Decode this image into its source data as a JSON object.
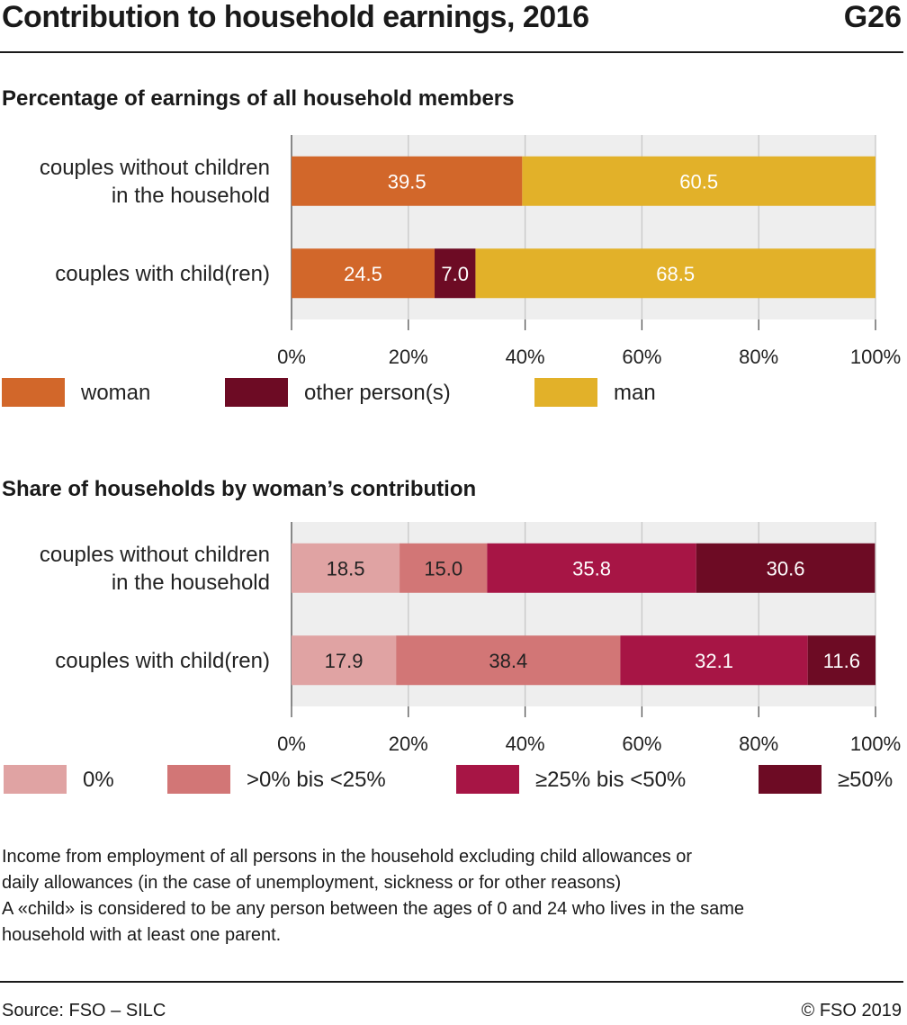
{
  "header": {
    "title": "Contribution to household earnings, 2016",
    "code": "G26"
  },
  "chart_data": [
    {
      "type": "bar",
      "orientation": "horizontal-stacked",
      "title": "Percentage of earnings of all household members",
      "categories": [
        "couples without children in the household",
        "couples with child(ren)"
      ],
      "category_lines": [
        [
          "couples without children",
          "in the household"
        ],
        [
          "couples with child(ren)"
        ]
      ],
      "series": [
        {
          "name": "woman",
          "color": "#d2672a",
          "labels": [
            "39.5",
            "24.5"
          ],
          "values": [
            39.5,
            24.5
          ]
        },
        {
          "name": "other person(s)",
          "color": "#6d0b24",
          "labels": [
            null,
            "7.0"
          ],
          "values": [
            0,
            7.0
          ]
        },
        {
          "name": "man",
          "color": "#e2b129",
          "labels": [
            "60.5",
            "68.5"
          ],
          "values": [
            60.5,
            68.5
          ]
        }
      ],
      "xlim": [
        0,
        100
      ],
      "ticks": [
        "0%",
        "20%",
        "40%",
        "60%",
        "80%",
        "100%"
      ],
      "grid": true,
      "legend_position": "bottom"
    },
    {
      "type": "bar",
      "orientation": "horizontal-stacked",
      "title": "Share of households by woman’s contribution",
      "categories": [
        "couples without children in the household",
        "couples with child(ren)"
      ],
      "category_lines": [
        [
          "couples without children",
          "in the household"
        ],
        [
          "couples with child(ren)"
        ]
      ],
      "series": [
        {
          "name": "0%",
          "color": "#e0a3a3",
          "text_color": "#222222",
          "labels": [
            "18.5",
            "17.9"
          ],
          "values": [
            18.5,
            17.9
          ]
        },
        {
          "name": ">0% bis <25%",
          "color": "#d27676",
          "text_color": "#222222",
          "labels": [
            "15.0",
            "38.4"
          ],
          "values": [
            15.0,
            38.4
          ]
        },
        {
          "name": "≥25% bis <50%",
          "color": "#a71545",
          "text_color": "#ffffff",
          "labels": [
            "35.8",
            "32.1"
          ],
          "values": [
            35.8,
            32.1
          ]
        },
        {
          "name": "≥50%",
          "color": "#6d0b24",
          "text_color": "#ffffff",
          "labels": [
            "30.6",
            "11.6"
          ],
          "values": [
            30.6,
            11.6
          ]
        }
      ],
      "xlim": [
        0,
        100
      ],
      "ticks": [
        "0%",
        "20%",
        "40%",
        "60%",
        "80%",
        "100%"
      ],
      "grid": true,
      "legend_position": "bottom"
    }
  ],
  "notes": [
    "Income from employment of all persons in the household excluding child allowances or",
    "daily allowances (in the case of unemployment, sickness or for other reasons)",
    "A «child» is considered to be any person between the ages of 0 and 24 who lives in the same",
    "household with at least one parent."
  ],
  "footer": {
    "source": "Source: FSO – SILC",
    "copyright": "© FSO 2019"
  }
}
